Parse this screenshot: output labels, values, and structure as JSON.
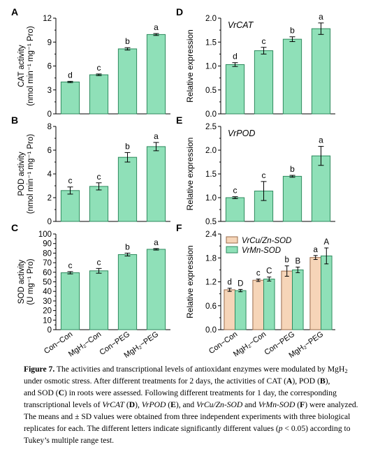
{
  "chart_data": [
    {
      "panel": "A",
      "type": "bar",
      "categories": [
        "Con−Con",
        "MgH₂−Con",
        "Con−PEG",
        "MgH₂−PEG"
      ],
      "values": [
        4.0,
        4.9,
        8.15,
        9.95
      ],
      "errors": [
        0.08,
        0.1,
        0.15,
        0.12
      ],
      "letters": [
        "d",
        "c",
        "b",
        "a"
      ],
      "ylabel_line1": "CAT activity",
      "ylabel_line2": "(nmol min⁻¹ mg⁻¹ Pro)",
      "ylim": [
        0,
        12
      ],
      "yticks": [
        0,
        3,
        6,
        9,
        12
      ]
    },
    {
      "panel": "B",
      "type": "bar",
      "categories": [
        "Con−Con",
        "MgH₂−Con",
        "Con−PEG",
        "MgH₂−PEG"
      ],
      "values": [
        2.6,
        2.95,
        5.4,
        6.3
      ],
      "errors": [
        0.3,
        0.3,
        0.4,
        0.35
      ],
      "letters": [
        "c",
        "c",
        "b",
        "a"
      ],
      "ylabel_line1": "POD activity",
      "ylabel_line2": "(nmol min⁻¹ mg⁻¹ Pro)",
      "ylim": [
        0,
        8
      ],
      "yticks": [
        0,
        2,
        4,
        6,
        8
      ]
    },
    {
      "panel": "C",
      "type": "bar",
      "categories": [
        "Con−Con",
        "MgH₂−Con",
        "Con−PEG",
        "MgH₂−PEG"
      ],
      "values": [
        59.5,
        61.5,
        78.5,
        84
      ],
      "errors": [
        1.2,
        2.5,
        1.5,
        0.8
      ],
      "letters": [
        "c",
        "c",
        "b",
        "a"
      ],
      "ylabel_line1": "SOD activity",
      "ylabel_line2": "(U mg⁻¹ Pro)",
      "ylim": [
        0,
        100
      ],
      "yticks": [
        0,
        10,
        20,
        30,
        40,
        50,
        60,
        70,
        80,
        90,
        100
      ]
    },
    {
      "panel": "D",
      "type": "bar",
      "title": "VrCAT",
      "categories": [
        "Con−Con",
        "MgH₂−Con",
        "Con−PEG",
        "MgH₂−PEG"
      ],
      "values": [
        1.03,
        1.32,
        1.56,
        1.78
      ],
      "errors": [
        0.04,
        0.07,
        0.05,
        0.12
      ],
      "letters": [
        "d",
        "c",
        "b",
        "a"
      ],
      "ylabel_line1": "Relative expression",
      "ylim": [
        0.0,
        2.0
      ],
      "yticks": [
        "0.0",
        "0.5",
        "1.0",
        "1.5",
        "2.0"
      ]
    },
    {
      "panel": "E",
      "type": "bar",
      "title": "VrPOD",
      "categories": [
        "Con−Con",
        "MgH₂−Con",
        "Con−PEG",
        "MgH₂−PEG"
      ],
      "values": [
        1.0,
        1.14,
        1.45,
        1.88
      ],
      "errors": [
        0.02,
        0.2,
        0.02,
        0.2
      ],
      "letters": [
        "c",
        "c",
        "b",
        "a"
      ],
      "ylabel_line1": "Relative expression",
      "ylim": [
        0.5,
        2.5
      ],
      "yticks": [
        "0.5",
        "1.0",
        "1.5",
        "2.0",
        "2.5"
      ]
    },
    {
      "panel": "F",
      "type": "bar",
      "categories": [
        "Con−Con",
        "MgH₂−Con",
        "Con−PEG",
        "MgH₂−PEG"
      ],
      "series": [
        {
          "name": "VrCu/Zn-SOD",
          "color": "#f6d5b8",
          "values": [
            1.0,
            1.24,
            1.47,
            1.81
          ],
          "errors": [
            0.04,
            0.03,
            0.13,
            0.05
          ],
          "letters": [
            "d",
            "c",
            "b",
            "a"
          ]
        },
        {
          "name": "VrMn-SOD",
          "color": "#8fe0b8",
          "values": [
            0.98,
            1.27,
            1.5,
            1.85
          ],
          "errors": [
            0.03,
            0.05,
            0.07,
            0.2
          ],
          "letters": [
            "D",
            "C",
            "B",
            "A"
          ]
        }
      ],
      "ylabel_line1": "Relative expression",
      "ylim": [
        0.0,
        2.4
      ],
      "yticks": [
        "0.0",
        "0.6",
        "1.2",
        "1.8",
        "2.4"
      ],
      "legend_position": "top-left"
    }
  ],
  "colors": {
    "bar_fill": "#8fe0b8",
    "bar_stroke": "#2e8a5e",
    "orange_fill": "#f6d5b8"
  },
  "caption": {
    "line1_a": "Figure 7.",
    "line1_b": " The activities and transcriptional levels of antioxidant enzymes were modulated by MgH",
    "line1_sub": "2",
    "line2": "under osmotic stress.  After different treatments for 2 days, the activities of CAT (",
    "line2_A": "A",
    "line2_b": "), POD (",
    "line2_B": "B",
    "line2_c": "),",
    "line3_a": "and SOD (",
    "line3_C": "C",
    "line3_b": ") in roots were assessed.  Following different treatments for 1 day, the corresponding",
    "line4_a": "transcriptional levels of ",
    "line4_i1": "VrCAT",
    "line4_b": " (",
    "line4_D": "D",
    "line4_c": "), ",
    "line4_i2": "VrPOD",
    "line4_d": " (",
    "line4_E": "E",
    "line4_e": "), and ",
    "line4_i3": "VrCu/Zn-SOD",
    "line4_f": " and ",
    "line4_i4": "VrMn-SOD",
    "line4_g": " (",
    "line4_F": "F",
    "line4_h": ") were analyzed.",
    "line5": "The means and ± SD values were obtained from three independent experiments with three biological",
    "line6": "replicates for each. The different letters indicate significantly different values (",
    "line6_p": "p",
    "line6_b": " < 0.05) according to",
    "line7": "Tukey’s multiple range test."
  }
}
